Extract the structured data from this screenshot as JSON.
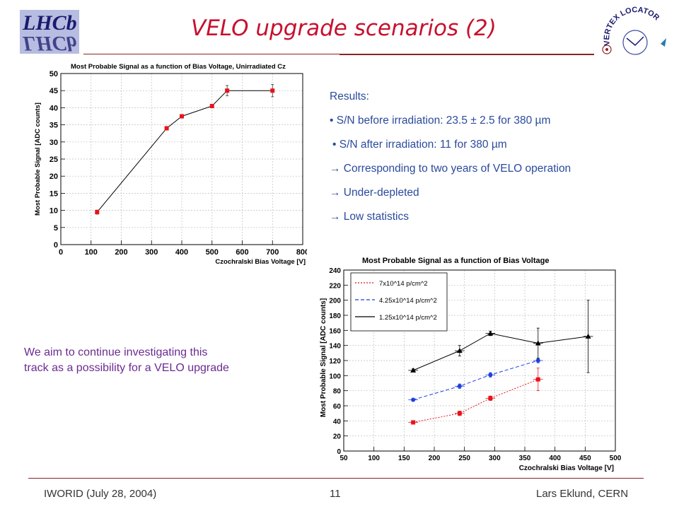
{
  "header": {
    "logo_text": "LHCb",
    "title": "VELO upgrade scenarios (2)",
    "vertex_logo_text": "VERTEX LOCATOR"
  },
  "results": {
    "heading": "Results:",
    "items": [
      "• S/N before irradiation: 23.5 ± 2.5 for 380 µm",
      "• S/N after irradiation: 11 for 380 µm",
      "→ Corresponding to two years of VELO operation",
      "→ Under-depleted",
      "→ Low statistics"
    ]
  },
  "aim": {
    "line1": "We aim to continue investigating this",
    "line2": "track as a possibility for a VELO upgrade"
  },
  "footer": {
    "left": "IWORID (July 28, 2004)",
    "center": "11",
    "right": "Lars Eklund, CERN"
  },
  "colors": {
    "title": "#c8102e",
    "results_text": "#2b4a9c",
    "aim_text": "#6a2c91",
    "series_red": "#e8131b",
    "series_blue": "#1f3fe0",
    "series_black": "#000000"
  },
  "chart_data": [
    {
      "type": "line",
      "title": "Most Probable Signal as a function of Bias Voltage, Unirradiated Cz",
      "xlabel": "Czochralski Bias Voltage [V]",
      "ylabel": "Most Probable Signal [ADC counts]",
      "xlim": [
        0,
        800
      ],
      "ylim": [
        0,
        50
      ],
      "xticks": [
        "0",
        "100",
        "200",
        "300",
        "400",
        "500",
        "600",
        "700",
        "800"
      ],
      "yticks": [
        "0",
        "5",
        "10",
        "15",
        "20",
        "25",
        "30",
        "35",
        "40",
        "45",
        "50"
      ],
      "grid": true,
      "series": [
        {
          "x": [
            120,
            350,
            400,
            500,
            550,
            700
          ],
          "y": [
            9.5,
            34,
            37.5,
            40.5,
            45,
            45
          ],
          "yerr": [
            0.6,
            0.5,
            0.4,
            0.5,
            1.5,
            1.8
          ],
          "xerr": [
            5,
            5,
            5,
            5,
            5,
            5
          ],
          "color": "#e8131b"
        }
      ]
    },
    {
      "type": "line",
      "title": "Most Probable Signal as a function of Bias Voltage",
      "xlabel": "Czochralski Bias Voltage [V]",
      "ylabel": "Most Probable Signal [ADC counts]",
      "xlim": [
        50,
        500
      ],
      "ylim": [
        0,
        240
      ],
      "xticks": [
        "50",
        "100",
        "150",
        "200",
        "250",
        "300",
        "350",
        "400",
        "450",
        "500"
      ],
      "yticks": [
        "0",
        "20",
        "40",
        "60",
        "80",
        "100",
        "120",
        "140",
        "160",
        "180",
        "200",
        "220",
        "240"
      ],
      "grid": true,
      "legend_position": "top-left",
      "series": [
        {
          "name": "7x10^14 p/cm^2",
          "x": [
            165,
            242,
            293,
            372
          ],
          "y": [
            38,
            50,
            70,
            95
          ],
          "yerr": [
            2,
            3,
            3,
            15
          ],
          "xerr": [
            8,
            8,
            8,
            8
          ],
          "color": "#e8131b",
          "dash": "dotted"
        },
        {
          "name": "4.25x10^14 p/cm^2",
          "x": [
            165,
            242,
            293,
            372
          ],
          "y": [
            68,
            86,
            101,
            120
          ],
          "yerr": [
            2,
            3,
            3,
            3
          ],
          "xerr": [
            8,
            8,
            8,
            8
          ],
          "color": "#1f3fe0",
          "dash": "dashed"
        },
        {
          "name": "1.25x10^14 p/cm^2",
          "x": [
            165,
            242,
            293,
            372,
            455
          ],
          "y": [
            107,
            133,
            156,
            143,
            152
          ],
          "yerr": [
            2,
            7,
            3,
            20,
            48
          ],
          "xerr": [
            8,
            8,
            8,
            8,
            8
          ],
          "color": "#000000",
          "dash": "solid"
        }
      ]
    }
  ]
}
